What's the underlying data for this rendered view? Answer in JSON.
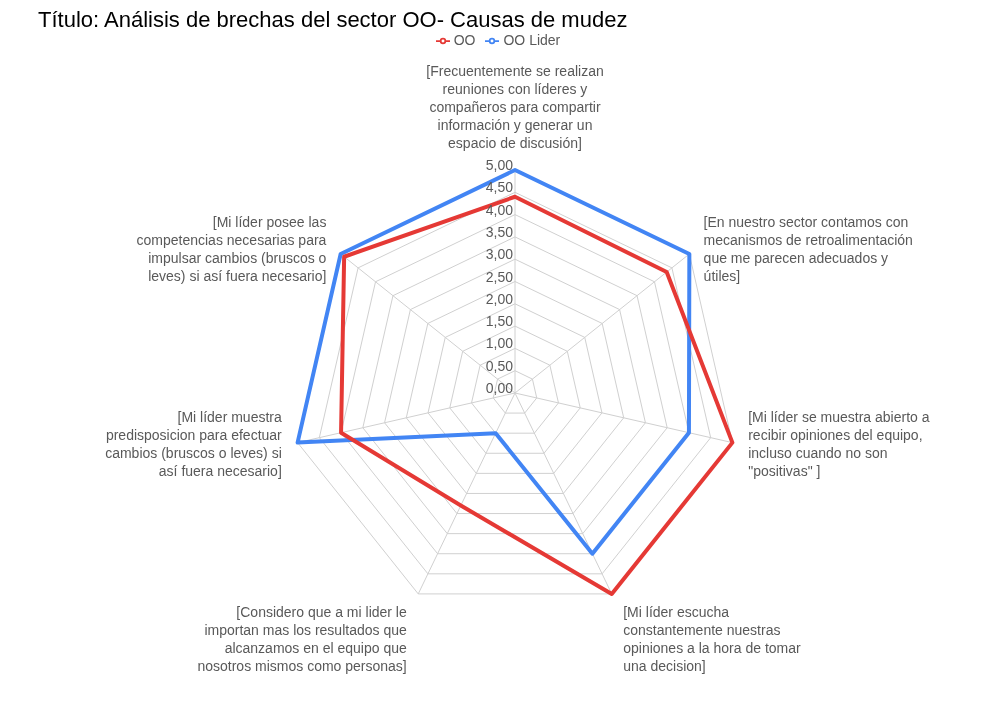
{
  "chart_data": {
    "type": "radar",
    "title": "Título: Análisis de brechas del sector OO- Causas de mudez",
    "categories": [
      "[Frecuentemente se realizan reuniones con líderes y compañeros para compartir información y generar un espacio de discusión]",
      "[En nuestro sector contamos con mecanismos de retroalimentación que me parecen adecuados y útiles]",
      "[Mi líder se muestra abierto a recibir opiniones del equipo, incluso cuando no son \"positivas\" ]",
      "[Mi líder escucha constantemente nuestras opiniones a la hora de tomar una decision]",
      "[Considero que a mi lider le importan mas los resultados que alcanzamos en el equipo que nosotros mismos como personas]",
      "[Mi líder muestra predisposicion para efectuar cambios (bruscos o leves) si así fuera necesario]",
      "[Mi líder posee las competencias necesarias para impulsar cambios (bruscos o leves) si así fuera necesario]"
    ],
    "series": [
      {
        "name": "OO Lider",
        "color": "#4285f4",
        "values": [
          5.0,
          5.0,
          4.0,
          4.0,
          1.0,
          5.0,
          5.0
        ]
      },
      {
        "name": "OO",
        "color": "#e53935",
        "values": [
          4.4,
          4.35,
          5.0,
          5.0,
          2.8,
          4.0,
          4.9
        ]
      }
    ],
    "ylim": [
      0,
      5
    ],
    "yticks": [
      {
        "value": 0,
        "label": "0,00"
      },
      {
        "value": 0.5,
        "label": "0,50"
      },
      {
        "value": 1,
        "label": "1,00"
      },
      {
        "value": 1.5,
        "label": "1,50"
      },
      {
        "value": 2,
        "label": "2,00"
      },
      {
        "value": 2.5,
        "label": "2,50"
      },
      {
        "value": 3,
        "label": "3,00"
      },
      {
        "value": 3.5,
        "label": "3,50"
      },
      {
        "value": 4,
        "label": "4,00"
      },
      {
        "value": 4.5,
        "label": "4,50"
      },
      {
        "value": 5,
        "label": "5,00"
      }
    ],
    "grid": true,
    "legend": "top",
    "marker": "none"
  }
}
